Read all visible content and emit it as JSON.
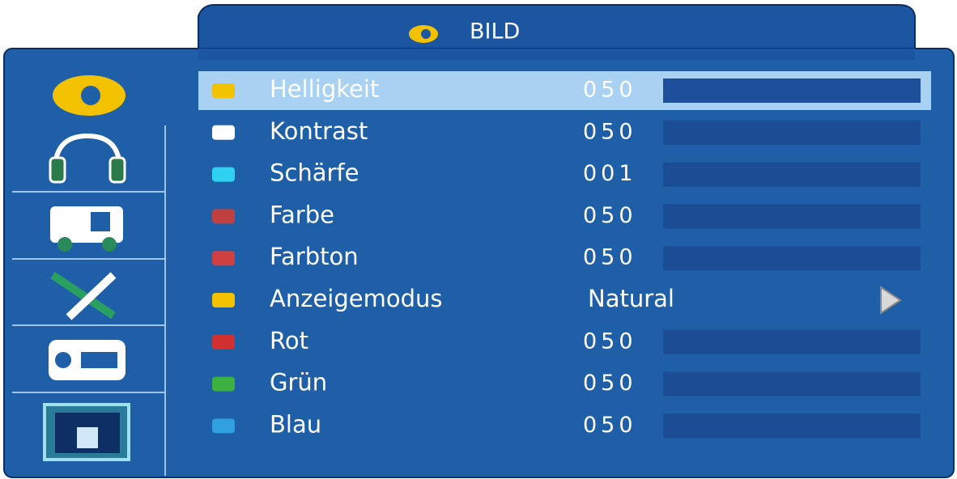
{
  "header": {
    "title": "BILD"
  },
  "items": [
    {
      "label": "Helligkeit",
      "value": "050"
    },
    {
      "label": "Kontrast",
      "value": "050"
    },
    {
      "label": "Schärfe",
      "value": "001"
    },
    {
      "label": "Farbe",
      "value": "050"
    },
    {
      "label": "Farbton",
      "value": "050"
    },
    {
      "label": "Anzeigemodus",
      "value": "Natural"
    },
    {
      "label": "Rot",
      "value": "050"
    },
    {
      "label": "Grün",
      "value": "050"
    },
    {
      "label": "Blau",
      "value": "050"
    }
  ]
}
